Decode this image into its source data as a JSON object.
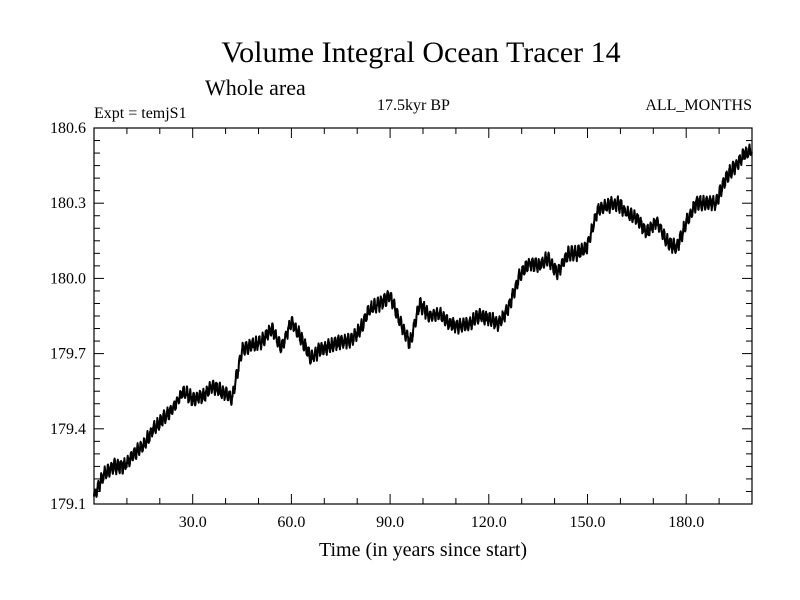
{
  "chart_data": {
    "type": "line",
    "title": "Volume Integral Ocean Tracer 14",
    "subtitle": "Whole area",
    "left_label": "Expt = temjS1",
    "center_label": "17.5kyr BP",
    "right_label": "ALL_MONTHS",
    "xlabel": "Time (in years since start)",
    "ylabel": "",
    "xlim": [
      0,
      200
    ],
    "ylim": [
      179.1,
      180.6
    ],
    "x_ticks": [
      30,
      60,
      90,
      120,
      150,
      180
    ],
    "x_tick_labels": [
      "30.0",
      "60.0",
      "90.0",
      "120.0",
      "150.0",
      "180.0"
    ],
    "y_ticks": [
      179.1,
      179.4,
      179.7,
      180.0,
      180.3,
      180.6
    ],
    "y_tick_labels": [
      "179.1",
      "179.4",
      "179.7",
      "180.0",
      "180.3",
      "180.6"
    ],
    "series": [
      {
        "name": "Tracer 14",
        "color": "#000000",
        "x": [
          0,
          3,
          6,
          9,
          12,
          15,
          18,
          21,
          24,
          27,
          30,
          33,
          36,
          39,
          42,
          45,
          48,
          51,
          54,
          57,
          60,
          63,
          66,
          69,
          72,
          75,
          78,
          81,
          84,
          87,
          90,
          93,
          96,
          99,
          102,
          105,
          108,
          111,
          114,
          117,
          120,
          123,
          126,
          129,
          132,
          135,
          138,
          141,
          144,
          147,
          150,
          153,
          156,
          159,
          162,
          165,
          168,
          171,
          174,
          177,
          180,
          183,
          186,
          189,
          192,
          195,
          198,
          200
        ],
        "values": [
          179.13,
          179.22,
          179.25,
          179.25,
          179.3,
          179.33,
          179.4,
          179.44,
          179.48,
          179.55,
          179.52,
          179.53,
          179.57,
          179.55,
          179.52,
          179.72,
          179.73,
          179.75,
          179.8,
          179.72,
          179.83,
          179.76,
          179.68,
          179.72,
          179.73,
          179.75,
          179.75,
          179.8,
          179.88,
          179.9,
          179.93,
          179.83,
          179.74,
          179.9,
          179.85,
          179.86,
          179.82,
          179.81,
          179.82,
          179.85,
          179.84,
          179.82,
          179.88,
          180.0,
          180.06,
          180.05,
          180.08,
          180.02,
          180.1,
          180.1,
          180.13,
          180.27,
          180.29,
          180.3,
          180.26,
          180.24,
          180.18,
          180.23,
          180.15,
          180.12,
          180.22,
          180.3,
          180.3,
          180.3,
          180.4,
          180.45,
          180.5,
          180.51
        ]
      }
    ]
  }
}
